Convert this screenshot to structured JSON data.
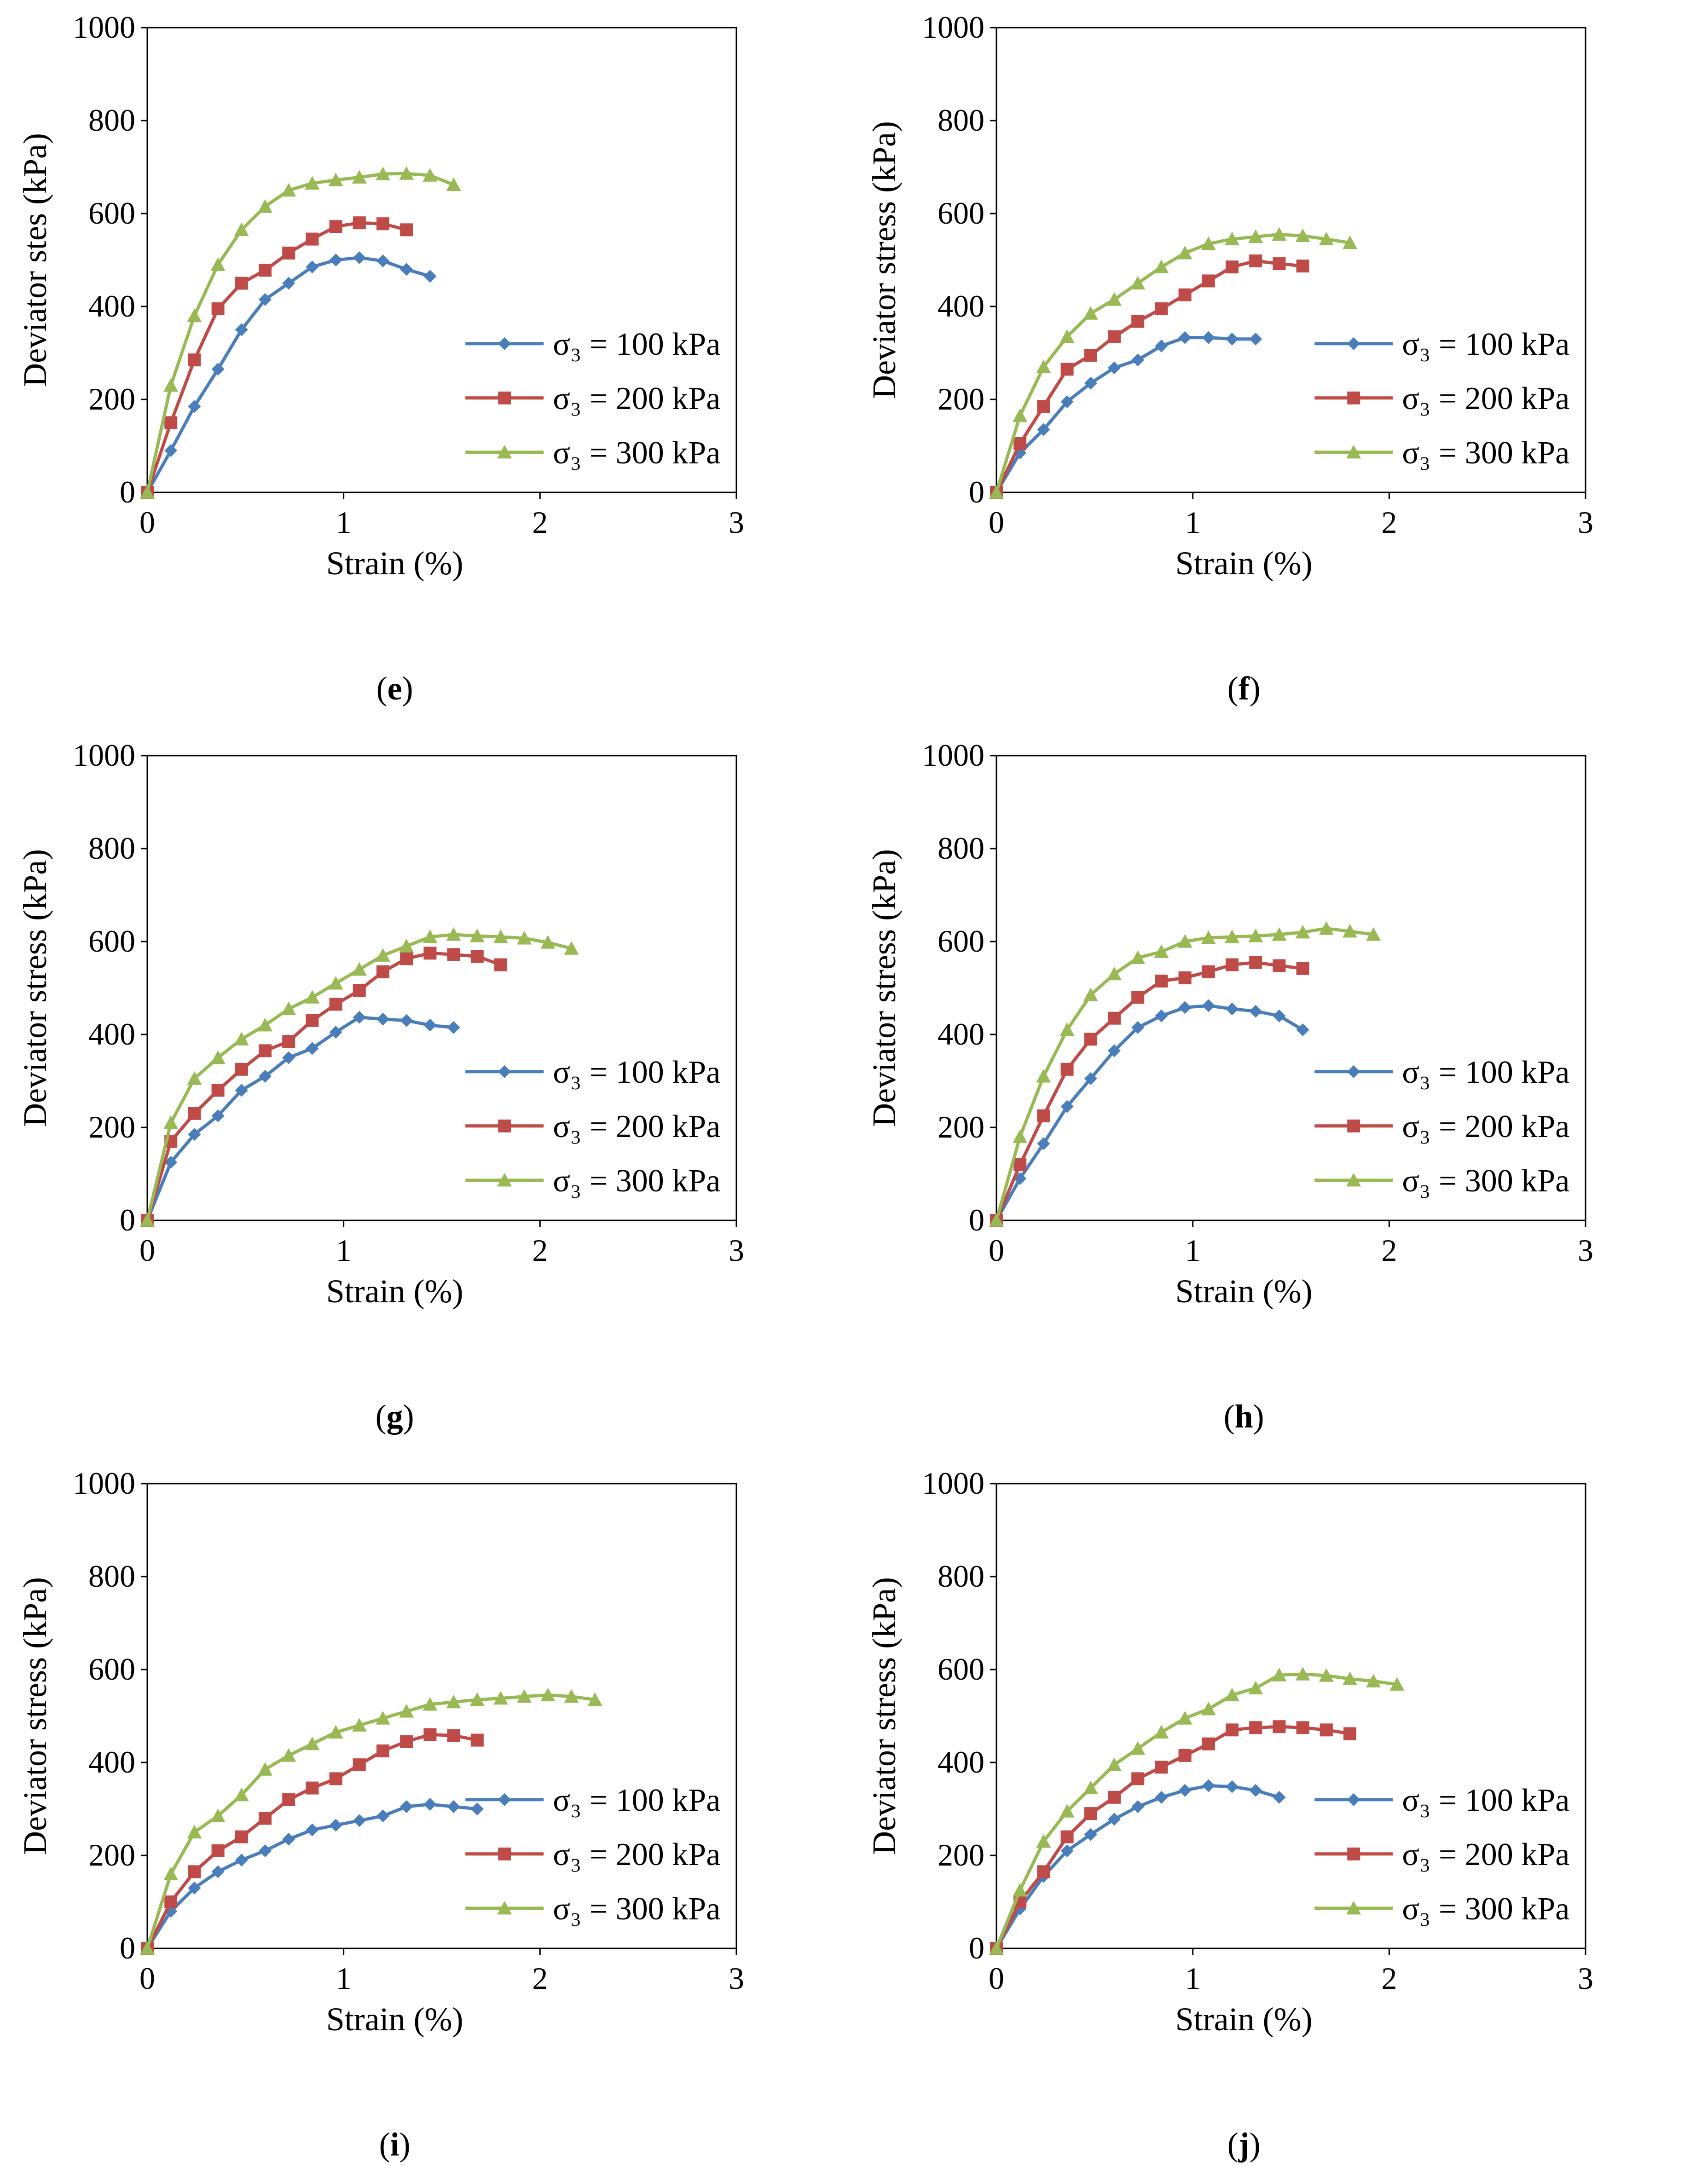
{
  "figure": {
    "panel_count": 6
  },
  "colors": {
    "s100": "#4a7ebb",
    "s200": "#be4b48",
    "s300": "#98b954"
  },
  "chart_data": [
    {
      "id": "e",
      "type": "line",
      "caption": "e",
      "title": "",
      "xlabel": "Strain (%)",
      "ylabel": "Deviator stes  (kPa)",
      "xlim": [
        0,
        3
      ],
      "ylim": [
        0,
        1000
      ],
      "xticks": [
        "0",
        "1",
        "2",
        "3"
      ],
      "yticks": [
        "0",
        "200",
        "400",
        "600",
        "800",
        "1000"
      ],
      "legend_position": "lower-right",
      "series": [
        {
          "name": "σ₃  = 100 kPa",
          "marker": "diamond",
          "color": "#4a7ebb",
          "x": [
            0,
            0.12,
            0.24,
            0.36,
            0.48,
            0.6,
            0.72,
            0.84,
            0.96,
            1.08,
            1.2,
            1.32,
            1.44
          ],
          "y": [
            0,
            90,
            185,
            265,
            350,
            415,
            450,
            485,
            500,
            505,
            498,
            480,
            465
          ]
        },
        {
          "name": "σ₃  = 200 kPa",
          "marker": "square",
          "color": "#be4b48",
          "x": [
            0,
            0.12,
            0.24,
            0.36,
            0.48,
            0.6,
            0.72,
            0.84,
            0.96,
            1.08,
            1.2,
            1.32
          ],
          "y": [
            0,
            150,
            285,
            395,
            450,
            478,
            515,
            545,
            572,
            580,
            578,
            565
          ]
        },
        {
          "name": "σ₃  = 300 kPa",
          "marker": "triangle",
          "color": "#98b954",
          "x": [
            0,
            0.12,
            0.24,
            0.36,
            0.48,
            0.6,
            0.72,
            0.84,
            0.96,
            1.08,
            1.2,
            1.32,
            1.44,
            1.56
          ],
          "y": [
            0,
            230,
            380,
            490,
            565,
            615,
            650,
            665,
            672,
            678,
            685,
            686,
            682,
            662
          ]
        }
      ]
    },
    {
      "id": "f",
      "type": "line",
      "caption": "f",
      "title": "",
      "xlabel": "Strain (%)",
      "ylabel": "Deviator stress (kPa)",
      "xlim": [
        0,
        3
      ],
      "ylim": [
        0,
        1000
      ],
      "xticks": [
        "0",
        "1",
        "2",
        "3"
      ],
      "yticks": [
        "0",
        "200",
        "400",
        "600",
        "800",
        "1000"
      ],
      "legend_position": "lower-right",
      "series": [
        {
          "name": "σ₃  = 100 kPa",
          "marker": "diamond",
          "color": "#4a7ebb",
          "x": [
            0,
            0.12,
            0.24,
            0.36,
            0.48,
            0.6,
            0.72,
            0.84,
            0.96,
            1.08,
            1.2,
            1.32
          ],
          "y": [
            0,
            85,
            135,
            195,
            235,
            268,
            285,
            315,
            333,
            333,
            330,
            330
          ]
        },
        {
          "name": "σ₃  = 200 kPa",
          "marker": "square",
          "color": "#be4b48",
          "x": [
            0,
            0.12,
            0.24,
            0.36,
            0.48,
            0.6,
            0.72,
            0.84,
            0.96,
            1.08,
            1.2,
            1.32,
            1.44,
            1.56
          ],
          "y": [
            0,
            105,
            185,
            265,
            295,
            335,
            368,
            395,
            425,
            455,
            485,
            498,
            492,
            487
          ]
        },
        {
          "name": "σ₃  = 300 kPa",
          "marker": "triangle",
          "color": "#98b954",
          "x": [
            0,
            0.12,
            0.24,
            0.36,
            0.48,
            0.6,
            0.72,
            0.84,
            0.96,
            1.08,
            1.2,
            1.32,
            1.44,
            1.56,
            1.68,
            1.8
          ],
          "y": [
            0,
            165,
            270,
            335,
            385,
            415,
            450,
            485,
            515,
            535,
            545,
            550,
            555,
            552,
            545,
            537
          ]
        }
      ]
    },
    {
      "id": "g",
      "type": "line",
      "caption": "g",
      "title": "",
      "xlabel": "Strain (%)",
      "ylabel": "Deviator stress (kPa)",
      "xlim": [
        0,
        3
      ],
      "ylim": [
        0,
        1000
      ],
      "xticks": [
        "0",
        "1",
        "2",
        "3"
      ],
      "yticks": [
        "0",
        "200",
        "400",
        "600",
        "800",
        "1000"
      ],
      "legend_position": "lower-right",
      "series": [
        {
          "name": "σ₃  = 100 kPa",
          "marker": "diamond",
          "color": "#4a7ebb",
          "x": [
            0,
            0.12,
            0.24,
            0.36,
            0.48,
            0.6,
            0.72,
            0.84,
            0.96,
            1.08,
            1.2,
            1.32,
            1.44,
            1.56
          ],
          "y": [
            0,
            125,
            185,
            225,
            280,
            310,
            350,
            370,
            405,
            437,
            433,
            430,
            420,
            415
          ]
        },
        {
          "name": "σ₃  = 200 kPa",
          "marker": "square",
          "color": "#be4b48",
          "x": [
            0,
            0.12,
            0.24,
            0.36,
            0.48,
            0.6,
            0.72,
            0.84,
            0.96,
            1.08,
            1.2,
            1.32,
            1.44,
            1.56,
            1.68,
            1.8
          ],
          "y": [
            0,
            170,
            230,
            280,
            325,
            365,
            385,
            430,
            465,
            495,
            535,
            563,
            575,
            572,
            568,
            550
          ]
        },
        {
          "name": "σ₃  = 300 kPa",
          "marker": "triangle",
          "color": "#98b954",
          "x": [
            0,
            0.12,
            0.24,
            0.36,
            0.48,
            0.6,
            0.72,
            0.84,
            0.96,
            1.08,
            1.2,
            1.32,
            1.44,
            1.56,
            1.68,
            1.8,
            1.92,
            2.04,
            2.16
          ],
          "y": [
            0,
            210,
            305,
            350,
            390,
            420,
            455,
            480,
            510,
            540,
            570,
            590,
            610,
            615,
            612,
            610,
            607,
            598,
            585
          ]
        }
      ]
    },
    {
      "id": "h",
      "type": "line",
      "caption": "h",
      "title": "",
      "xlabel": "Strain (%)",
      "ylabel": "Deviator stress (kPa)",
      "xlim": [
        0,
        3
      ],
      "ylim": [
        0,
        1000
      ],
      "xticks": [
        "0",
        "1",
        "2",
        "3"
      ],
      "yticks": [
        "0",
        "200",
        "400",
        "600",
        "800",
        "1000"
      ],
      "legend_position": "lower-right",
      "series": [
        {
          "name": "σ₃  = 100 kPa",
          "marker": "diamond",
          "color": "#4a7ebb",
          "x": [
            0,
            0.12,
            0.24,
            0.36,
            0.48,
            0.6,
            0.72,
            0.84,
            0.96,
            1.08,
            1.2,
            1.32,
            1.44,
            1.56
          ],
          "y": [
            0,
            90,
            165,
            245,
            305,
            365,
            415,
            440,
            458,
            462,
            455,
            450,
            440,
            410
          ]
        },
        {
          "name": "σ₃  = 200 kPa",
          "marker": "square",
          "color": "#be4b48",
          "x": [
            0,
            0.12,
            0.24,
            0.36,
            0.48,
            0.6,
            0.72,
            0.84,
            0.96,
            1.08,
            1.2,
            1.32,
            1.44,
            1.56
          ],
          "y": [
            0,
            120,
            225,
            325,
            390,
            435,
            480,
            515,
            522,
            535,
            550,
            555,
            548,
            542
          ]
        },
        {
          "name": "σ₃  = 300 kPa",
          "marker": "triangle",
          "color": "#98b954",
          "x": [
            0,
            0.12,
            0.24,
            0.36,
            0.48,
            0.6,
            0.72,
            0.84,
            0.96,
            1.08,
            1.2,
            1.32,
            1.44,
            1.56,
            1.68,
            1.8,
            1.92
          ],
          "y": [
            0,
            180,
            310,
            410,
            485,
            530,
            565,
            578,
            600,
            608,
            610,
            612,
            615,
            620,
            628,
            622,
            615
          ]
        }
      ]
    },
    {
      "id": "i",
      "type": "line",
      "caption": "i",
      "title": "",
      "xlabel": "Strain (%)",
      "ylabel": "Deviator stress (kPa)",
      "xlim": [
        0,
        3
      ],
      "ylim": [
        0,
        1000
      ],
      "xticks": [
        "0",
        "1",
        "2",
        "3"
      ],
      "yticks": [
        "0",
        "200",
        "400",
        "600",
        "800",
        "1000"
      ],
      "legend_position": "lower-right",
      "series": [
        {
          "name": "σ₃  = 100 kPa",
          "marker": "diamond",
          "color": "#4a7ebb",
          "x": [
            0,
            0.12,
            0.24,
            0.36,
            0.48,
            0.6,
            0.72,
            0.84,
            0.96,
            1.08,
            1.2,
            1.32,
            1.44,
            1.56,
            1.68
          ],
          "y": [
            0,
            80,
            130,
            165,
            190,
            210,
            235,
            255,
            265,
            275,
            285,
            305,
            310,
            305,
            300
          ]
        },
        {
          "name": "σ₃  = 200 kPa",
          "marker": "square",
          "color": "#be4b48",
          "x": [
            0,
            0.12,
            0.24,
            0.36,
            0.48,
            0.6,
            0.72,
            0.84,
            0.96,
            1.08,
            1.2,
            1.32,
            1.44,
            1.56,
            1.68
          ],
          "y": [
            0,
            100,
            165,
            210,
            240,
            280,
            320,
            345,
            365,
            395,
            425,
            445,
            460,
            458,
            448
          ]
        },
        {
          "name": "σ₃  = 300 kPa",
          "marker": "triangle",
          "color": "#98b954",
          "x": [
            0,
            0.12,
            0.24,
            0.36,
            0.48,
            0.6,
            0.72,
            0.84,
            0.96,
            1.08,
            1.2,
            1.32,
            1.44,
            1.56,
            1.68,
            1.8,
            1.92,
            2.04,
            2.16,
            2.28
          ],
          "y": [
            0,
            160,
            250,
            285,
            330,
            385,
            415,
            440,
            465,
            480,
            495,
            510,
            525,
            530,
            535,
            538,
            542,
            545,
            542,
            535
          ]
        }
      ]
    },
    {
      "id": "j",
      "type": "line",
      "caption": "j",
      "title": "",
      "xlabel": "Strain (%)",
      "ylabel": "Deviator stress (kPa)",
      "xlim": [
        0,
        3
      ],
      "ylim": [
        0,
        1000
      ],
      "xticks": [
        "0",
        "1",
        "2",
        "3"
      ],
      "yticks": [
        "0",
        "200",
        "400",
        "600",
        "800",
        "1000"
      ],
      "legend_position": "lower-right",
      "series": [
        {
          "name": "σ₃  = 100 kPa",
          "marker": "diamond",
          "color": "#4a7ebb",
          "x": [
            0,
            0.12,
            0.24,
            0.36,
            0.48,
            0.6,
            0.72,
            0.84,
            0.96,
            1.08,
            1.2,
            1.32,
            1.44
          ],
          "y": [
            0,
            85,
            155,
            210,
            245,
            278,
            305,
            325,
            340,
            350,
            348,
            340,
            325
          ]
        },
        {
          "name": "σ₃  = 200 kPa",
          "marker": "square",
          "color": "#be4b48",
          "x": [
            0,
            0.12,
            0.24,
            0.36,
            0.48,
            0.6,
            0.72,
            0.84,
            0.96,
            1.08,
            1.2,
            1.32,
            1.44,
            1.56,
            1.68,
            1.8
          ],
          "y": [
            0,
            100,
            165,
            240,
            290,
            325,
            365,
            390,
            415,
            440,
            470,
            475,
            477,
            475,
            470,
            462
          ]
        },
        {
          "name": "σ₃  = 300 kPa",
          "marker": "triangle",
          "color": "#98b954",
          "x": [
            0,
            0.12,
            0.24,
            0.36,
            0.48,
            0.6,
            0.72,
            0.84,
            0.96,
            1.08,
            1.2,
            1.32,
            1.44,
            1.56,
            1.68,
            1.8,
            1.92,
            2.04
          ],
          "y": [
            0,
            125,
            230,
            295,
            345,
            395,
            430,
            465,
            495,
            515,
            545,
            560,
            588,
            590,
            587,
            580,
            575,
            568
          ]
        }
      ]
    }
  ]
}
